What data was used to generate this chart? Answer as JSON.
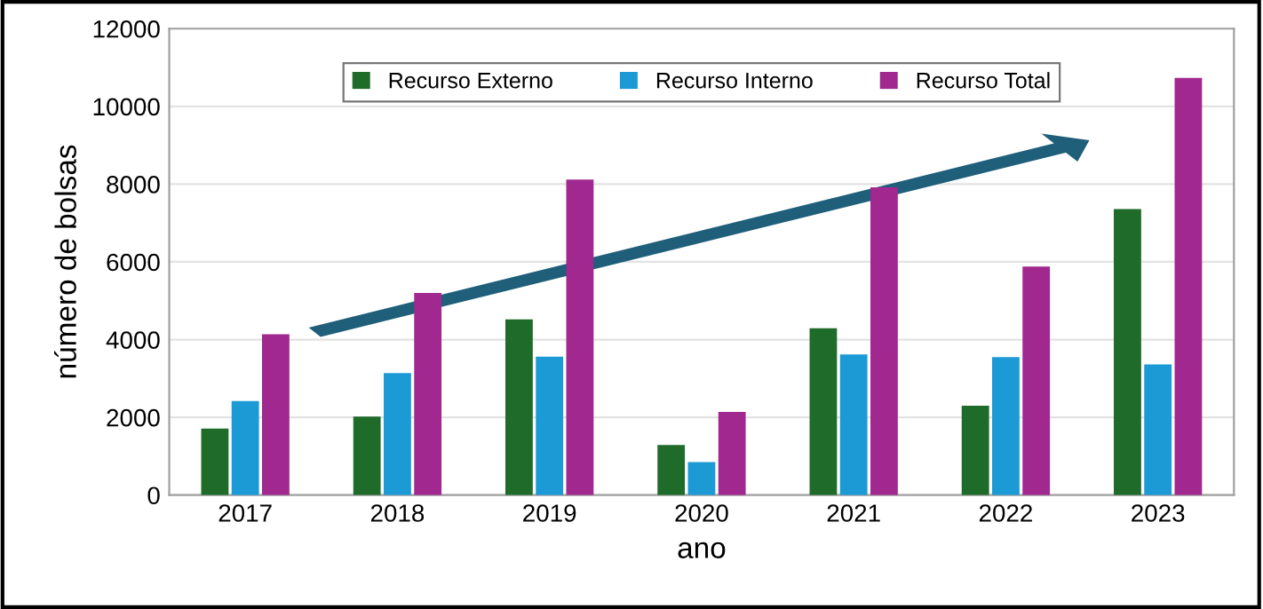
{
  "chart_data": {
    "type": "bar",
    "xlabel": "ano",
    "ylabel": "número de bolsas",
    "categories": [
      "2017",
      "2018",
      "2019",
      "2020",
      "2021",
      "2022",
      "2023"
    ],
    "series": [
      {
        "name": "Recurso Externo",
        "color": "#1e6b2a",
        "values": [
          1710,
          2020,
          4520,
          1290,
          4290,
          2300,
          7360
        ]
      },
      {
        "name": "Recurso Interno",
        "color": "#1b9ad6",
        "values": [
          2420,
          3140,
          3560,
          850,
          3620,
          3550,
          3360
        ]
      },
      {
        "name": "Recurso Total",
        "color": "#a0288f",
        "values": [
          4140,
          5200,
          8120,
          2140,
          7920,
          5880,
          10730
        ]
      }
    ],
    "ylim": [
      0,
      12000
    ],
    "yticks": [
      0,
      2000,
      4000,
      6000,
      8000,
      10000,
      12000
    ],
    "grid": "y",
    "legend": "top"
  }
}
